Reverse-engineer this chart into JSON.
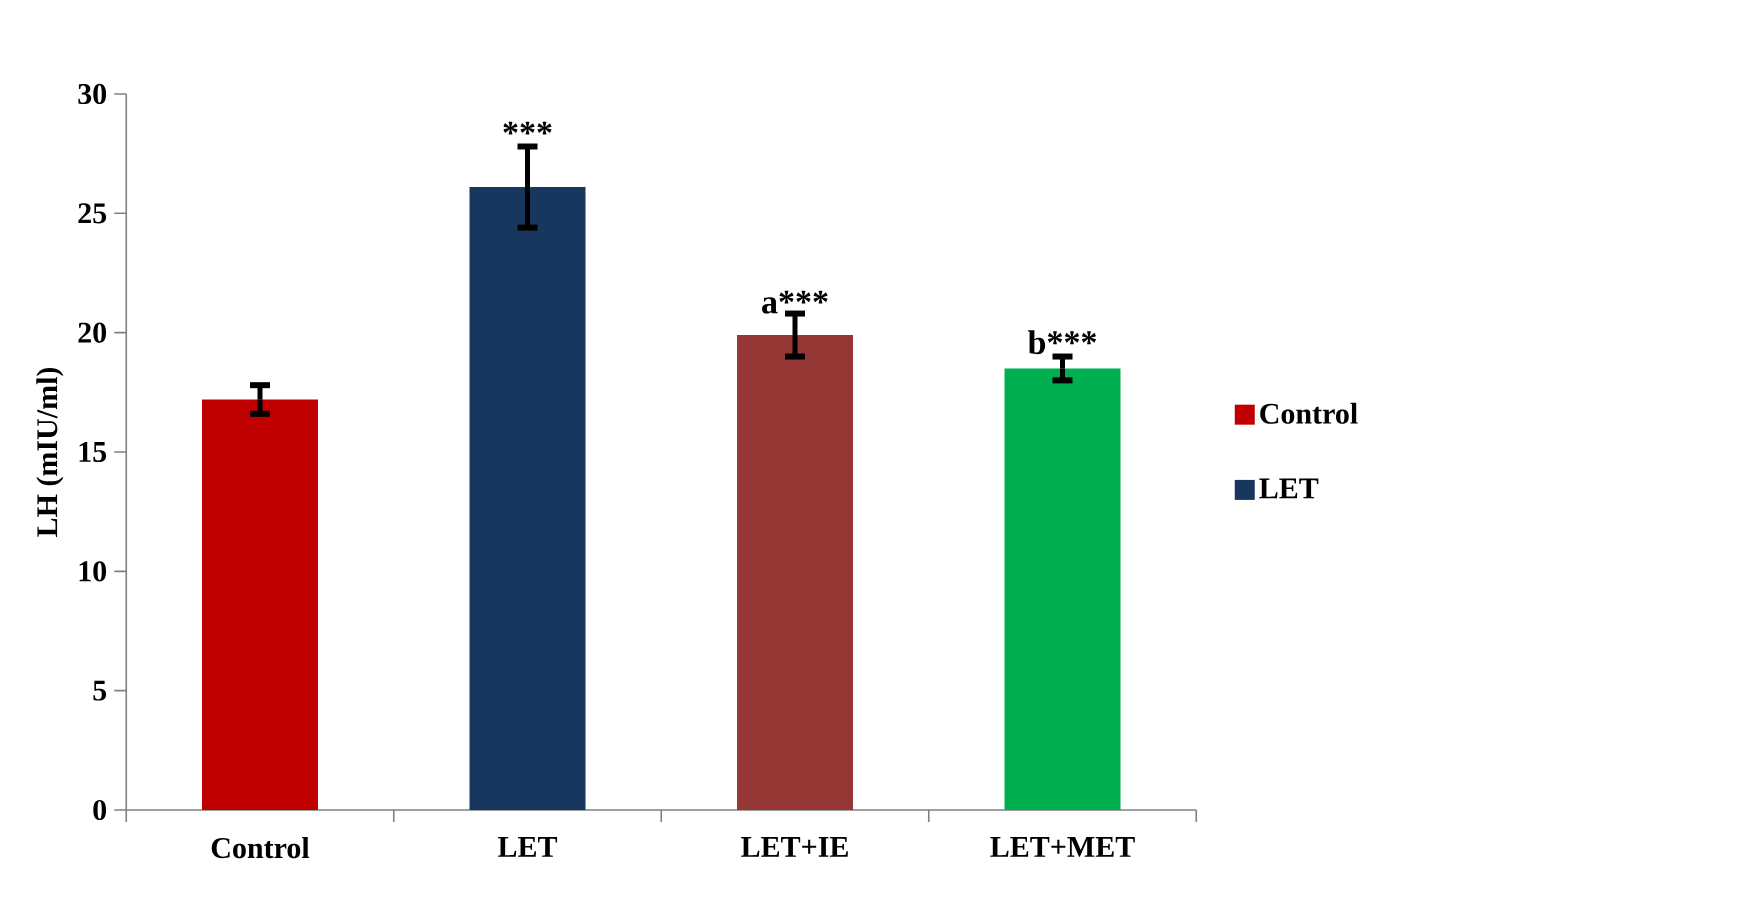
{
  "chart_data": {
    "type": "bar",
    "ylabel": "LH  (mIU/ml)",
    "categories": [
      "Control",
      "LET",
      "LET+IE",
      "LET+MET"
    ],
    "series": [
      {
        "name": "Control",
        "color": "#c00000",
        "values": [
          17.2,
          null,
          null,
          null
        ],
        "errors": [
          0.6,
          null,
          null,
          null
        ]
      },
      {
        "name": "LET",
        "color": "#17375e",
        "values": [
          null,
          26.1,
          null,
          null
        ],
        "errors": [
          null,
          1.7,
          null,
          null
        ]
      },
      {
        "color": "#953735",
        "values": [
          null,
          null,
          19.9,
          null
        ],
        "errors": [
          null,
          null,
          0.9,
          null
        ]
      },
      {
        "color": "#00b050",
        "values": [
          null,
          null,
          null,
          18.5
        ],
        "errors": [
          null,
          null,
          null,
          0.5
        ]
      }
    ],
    "ylim": [
      0,
      30
    ],
    "yticks": [
      0,
      5,
      10,
      15,
      20,
      25,
      30
    ],
    "grid": false,
    "legend": "right",
    "annotations": [
      {
        "text": "***",
        "x": "LET",
        "y": 27.8
      },
      {
        "text": "a***",
        "x": "LET+IE",
        "y": 20.7
      },
      {
        "text": "b***",
        "x": "LET+MET",
        "y": 19.0
      }
    ]
  }
}
